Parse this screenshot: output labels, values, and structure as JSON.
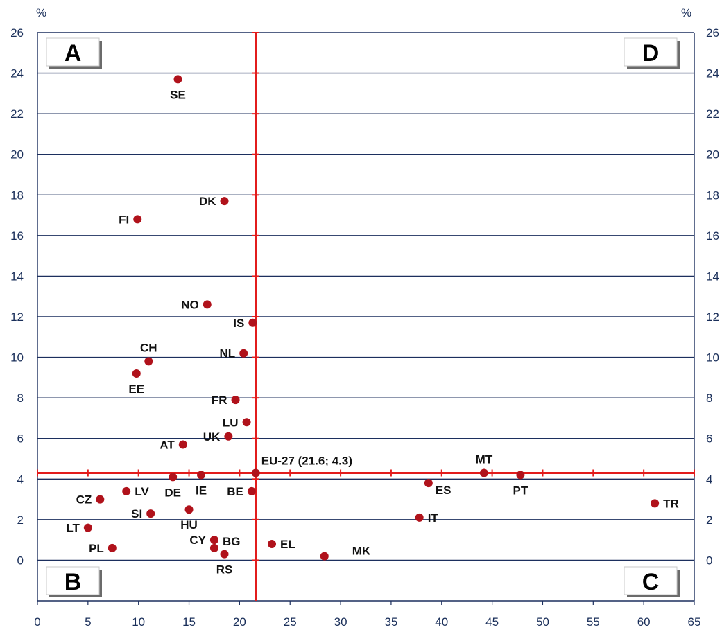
{
  "chart_data": {
    "type": "scatter",
    "xlim": [
      0,
      65
    ],
    "ylim": [
      -2,
      26
    ],
    "x_ticks": [
      0,
      5,
      10,
      15,
      20,
      25,
      30,
      35,
      40,
      45,
      50,
      55,
      60,
      65
    ],
    "y_ticks": [
      0,
      2,
      4,
      6,
      8,
      10,
      12,
      14,
      16,
      18,
      20,
      22,
      24,
      26
    ],
    "y_unit_left": "%",
    "y_unit_right": "%",
    "grid": "horizontal",
    "marker_color": "#b0121b",
    "reference_color": "#e21c1c",
    "reference": {
      "x": 21.6,
      "y": 4.3,
      "label": "EU-27 (21.6; 4.3)"
    },
    "quadrants": [
      {
        "label": "A",
        "position": "top-left"
      },
      {
        "label": "D",
        "position": "top-right"
      },
      {
        "label": "B",
        "position": "bottom-left"
      },
      {
        "label": "C",
        "position": "bottom-right"
      }
    ],
    "points": [
      {
        "label": "SE",
        "x": 13.9,
        "y": 23.7,
        "anchor": "below"
      },
      {
        "label": "DK",
        "x": 18.5,
        "y": 17.7,
        "anchor": "left"
      },
      {
        "label": "FI",
        "x": 9.9,
        "y": 16.8,
        "anchor": "left"
      },
      {
        "label": "NO",
        "x": 16.8,
        "y": 12.6,
        "anchor": "left"
      },
      {
        "label": "IS",
        "x": 21.3,
        "y": 11.7,
        "anchor": "left"
      },
      {
        "label": "NL",
        "x": 20.4,
        "y": 10.2,
        "anchor": "left"
      },
      {
        "label": "CH",
        "x": 11.0,
        "y": 9.8,
        "anchor": "above"
      },
      {
        "label": "EE",
        "x": 9.8,
        "y": 9.2,
        "anchor": "below"
      },
      {
        "label": "FR",
        "x": 19.6,
        "y": 7.9,
        "anchor": "left"
      },
      {
        "label": "LU",
        "x": 20.7,
        "y": 6.8,
        "anchor": "left"
      },
      {
        "label": "UK",
        "x": 18.9,
        "y": 6.1,
        "anchor": "left"
      },
      {
        "label": "AT",
        "x": 14.4,
        "y": 5.7,
        "anchor": "left"
      },
      {
        "label": "MT",
        "x": 44.2,
        "y": 4.3,
        "anchor": "above"
      },
      {
        "label": "PT",
        "x": 47.8,
        "y": 4.2,
        "anchor": "below"
      },
      {
        "label": "DE",
        "x": 13.4,
        "y": 4.1,
        "anchor": "below"
      },
      {
        "label": "IE",
        "x": 16.2,
        "y": 4.2,
        "anchor": "below"
      },
      {
        "label": "ES",
        "x": 38.7,
        "y": 3.8,
        "anchor": "right-below"
      },
      {
        "label": "LV",
        "x": 8.8,
        "y": 3.4,
        "anchor": "right"
      },
      {
        "label": "BE",
        "x": 21.2,
        "y": 3.4,
        "anchor": "left"
      },
      {
        "label": "CZ",
        "x": 6.2,
        "y": 3.0,
        "anchor": "left"
      },
      {
        "label": "TR",
        "x": 61.1,
        "y": 2.8,
        "anchor": "right"
      },
      {
        "label": "HU",
        "x": 15.0,
        "y": 2.5,
        "anchor": "below"
      },
      {
        "label": "SI",
        "x": 11.2,
        "y": 2.3,
        "anchor": "left"
      },
      {
        "label": "IT",
        "x": 37.8,
        "y": 2.1,
        "anchor": "right"
      },
      {
        "label": "LT",
        "x": 5.0,
        "y": 1.6,
        "anchor": "left"
      },
      {
        "label": "CY",
        "x": 17.5,
        "y": 1.0,
        "anchor": "left"
      },
      {
        "label": "BG",
        "x": 17.5,
        "y": 0.6,
        "anchor": "right-above"
      },
      {
        "label": "EL",
        "x": 23.2,
        "y": 0.8,
        "anchor": "right"
      },
      {
        "label": "PL",
        "x": 7.4,
        "y": 0.6,
        "anchor": "left"
      },
      {
        "label": "RS",
        "x": 18.5,
        "y": 0.3,
        "anchor": "below"
      },
      {
        "label": "MK",
        "x": 28.4,
        "y": 0.2,
        "anchor": "far-right"
      }
    ]
  }
}
